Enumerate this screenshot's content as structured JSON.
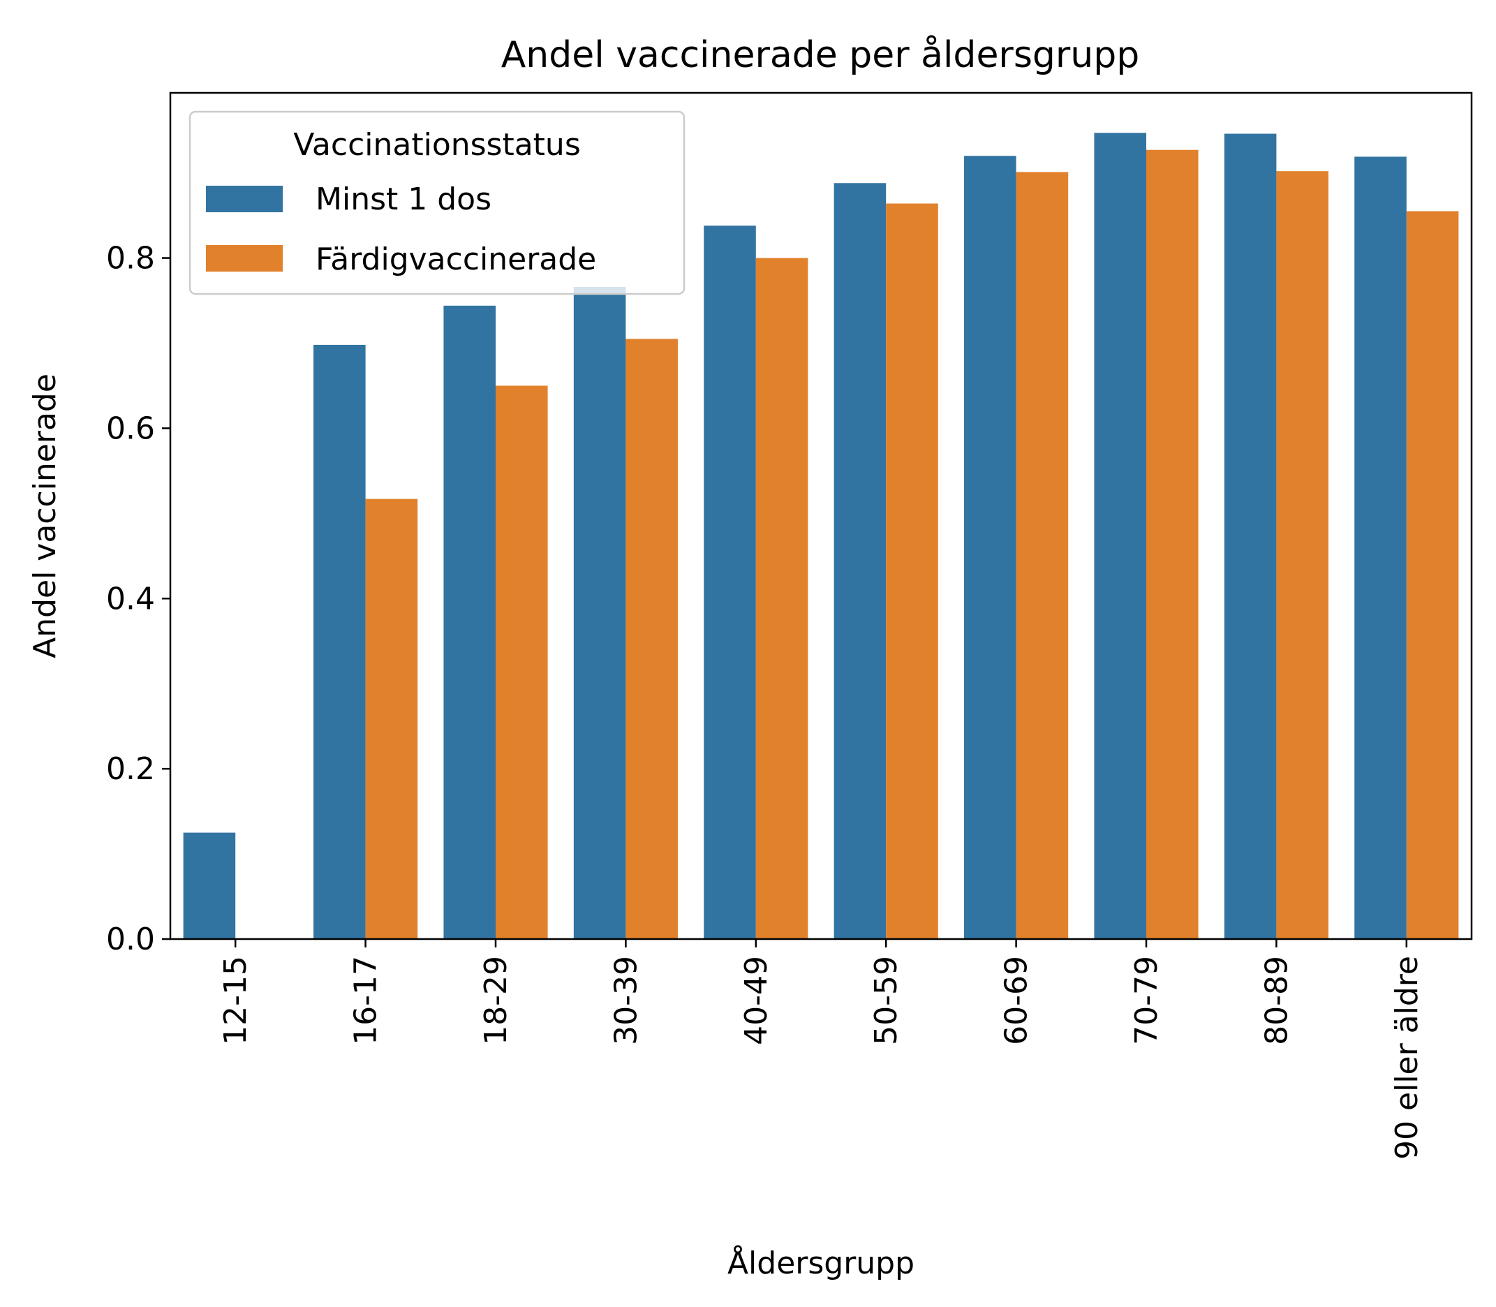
{
  "chart_data": {
    "type": "bar",
    "title": "Andel vaccinerade per åldersgrupp",
    "xlabel": "Åldersgrupp",
    "ylabel": "Andel vaccinerade",
    "categories": [
      "12-15",
      "16-17",
      "18-29",
      "30-39",
      "40-49",
      "50-59",
      "60-69",
      "70-79",
      "80-89",
      "90 eller äldre"
    ],
    "series": [
      {
        "name": "Minst 1 dos",
        "color": "#3274a1",
        "values": [
          0.125,
          0.698,
          0.744,
          0.766,
          0.838,
          0.888,
          0.92,
          0.947,
          0.946,
          0.919
        ]
      },
      {
        "name": "Färdigvaccinerade",
        "color": "#e1812c",
        "values": [
          0.0,
          0.517,
          0.65,
          0.705,
          0.8,
          0.864,
          0.901,
          0.927,
          0.902,
          0.855
        ]
      }
    ],
    "ylim": [
      0,
      0.994
    ],
    "yticks": [
      "0.0",
      "0.2",
      "0.4",
      "0.6",
      "0.8"
    ],
    "legend": {
      "title": "Vaccinationsstatus",
      "placement": "upper-left"
    },
    "grid": false
  }
}
